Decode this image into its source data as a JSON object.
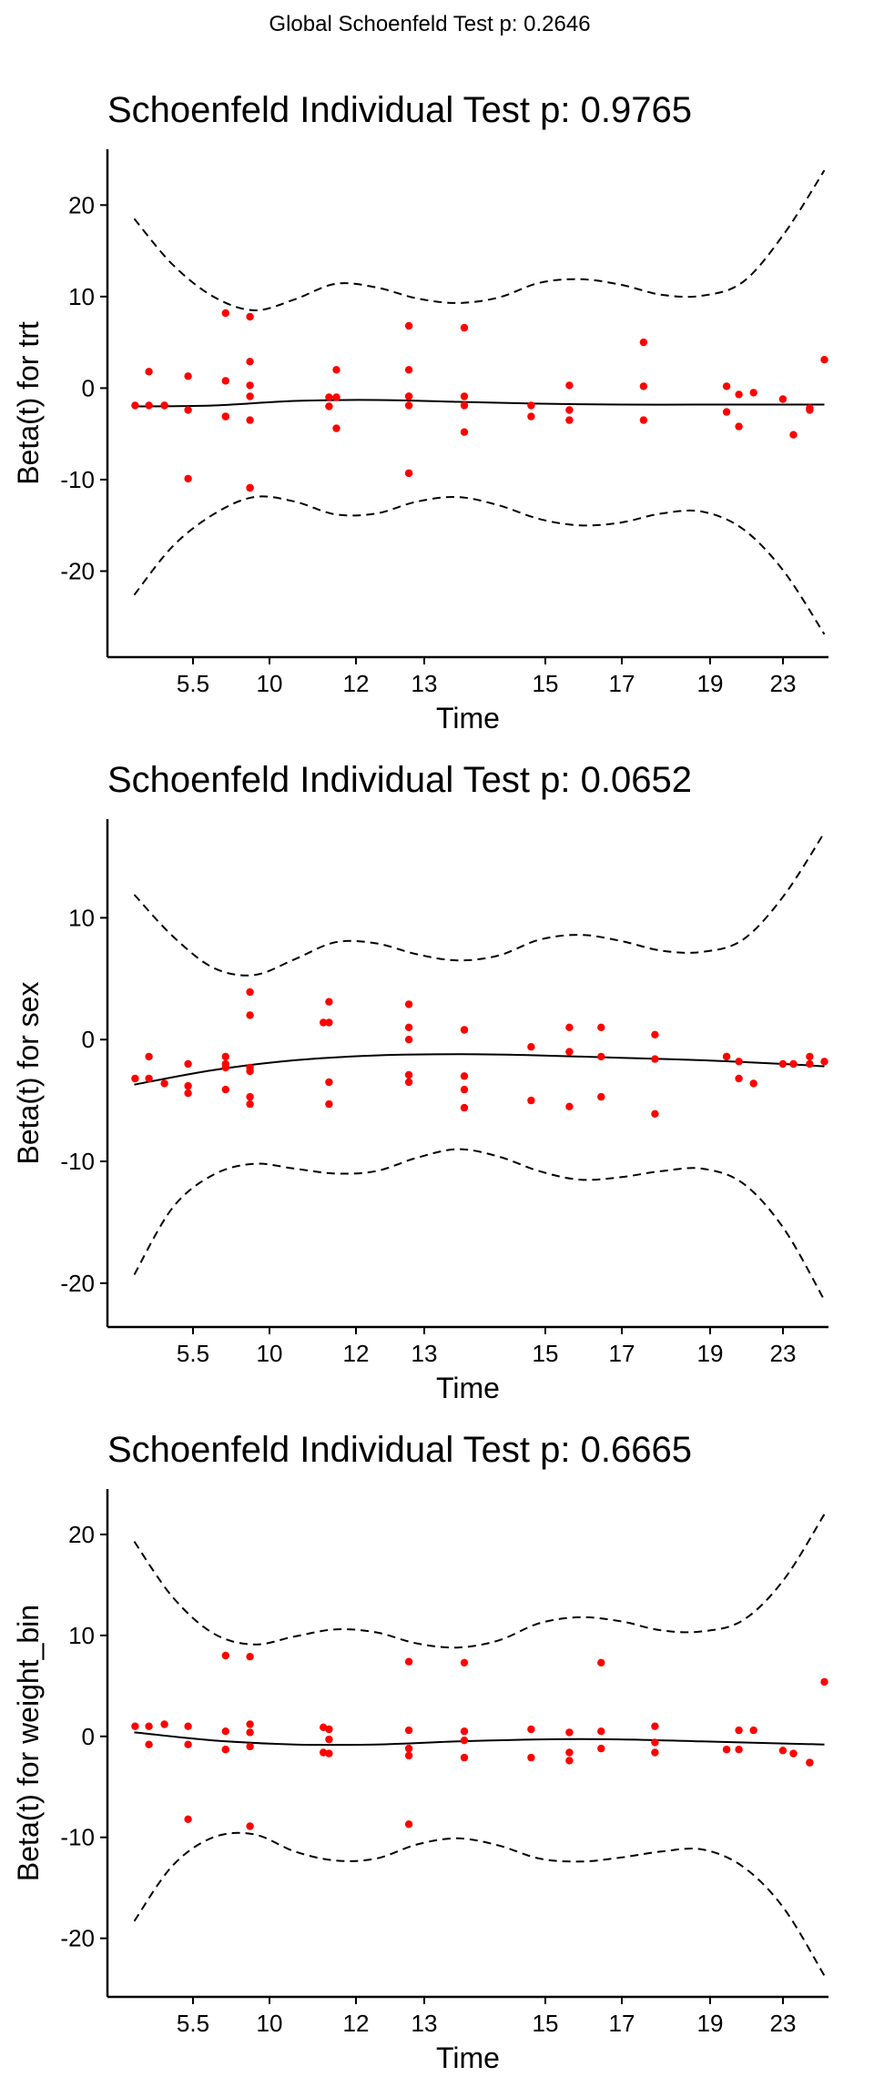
{
  "global_title": "Global Schoenfeld Test p: 0.2646",
  "chart_data": [
    {
      "type": "scatter",
      "title": "Schoenfeld Individual Test p: 0.9765",
      "xlabel": "Time",
      "ylabel": "Beta(t) for trt",
      "x_tick_labels": [
        "5.5",
        "10",
        "12",
        "13",
        "15",
        "17",
        "19",
        "23"
      ],
      "yticks": [
        -20,
        -10,
        0,
        10,
        20
      ],
      "ylim": [
        -29.4,
        26.1
      ],
      "xlim": [
        0.2,
        9.05
      ],
      "grid": false,
      "points": {
        "x": [
          0.54,
          0.71,
          0.71,
          0.9,
          0.9,
          1.19,
          1.19,
          1.19,
          1.65,
          1.65,
          1.65,
          1.65,
          1.95,
          1.95,
          1.95,
          1.95,
          1.95,
          1.95,
          1.95,
          2.92,
          2.92,
          3.01,
          3.01,
          3.01,
          3.9,
          3.9,
          3.9,
          3.9,
          3.9,
          3.9,
          3.9,
          4.58,
          4.58,
          4.58,
          4.58,
          5.4,
          5.4,
          5.87,
          5.87,
          5.87,
          6.78,
          6.78,
          6.78,
          7.8,
          7.8,
          7.95,
          7.95,
          8.13,
          8.49,
          8.62,
          8.82,
          8.82,
          9.0
        ],
        "y": [
          -1.9,
          1.8,
          -1.9,
          -1.9,
          -1.9,
          1.3,
          -2.4,
          -9.9,
          8.2,
          0.8,
          -3.1,
          -3.1,
          7.8,
          2.9,
          0.3,
          -0.9,
          -3.5,
          -10.9,
          -10.9,
          -1.0,
          -2.0,
          2.0,
          -1.0,
          -4.4,
          6.8,
          2.0,
          -0.9,
          -0.9,
          -1.9,
          -9.3,
          -9.3,
          6.6,
          -0.9,
          -1.9,
          -4.8,
          -1.9,
          -3.1,
          0.3,
          -2.4,
          -3.5,
          5.0,
          0.2,
          -3.5,
          0.2,
          -2.6,
          -0.7,
          -4.2,
          -0.5,
          -1.2,
          -5.1,
          -2.2,
          -2.4,
          3.1
        ]
      },
      "fit": {
        "x": [
          0.53,
          1.5,
          2.5,
          3.5,
          4.5,
          5.5,
          6.5,
          7.5,
          8.5,
          9.0
        ],
        "y": [
          -2.0,
          -1.9,
          -1.4,
          -1.3,
          -1.5,
          -1.7,
          -1.8,
          -1.8,
          -1.8,
          -1.8
        ]
      },
      "ci_upper": {
        "x": [
          0.53,
          1.0,
          1.5,
          2.0,
          2.5,
          3.0,
          3.5,
          4.0,
          4.5,
          5.0,
          5.5,
          6.0,
          6.5,
          7.0,
          7.5,
          8.0,
          8.5,
          9.0
        ],
        "y": [
          18.5,
          13.5,
          10.0,
          8.5,
          9.7,
          11.4,
          11.0,
          9.8,
          9.3,
          9.9,
          11.5,
          11.9,
          11.3,
          10.2,
          10.1,
          11.6,
          16.8,
          23.8
        ]
      },
      "ci_lower": {
        "x": [
          0.53,
          1.0,
          1.5,
          2.0,
          2.5,
          3.0,
          3.5,
          4.0,
          4.5,
          5.0,
          5.5,
          6.0,
          6.5,
          7.0,
          7.5,
          8.0,
          8.5,
          9.0
        ],
        "y": [
          -22.6,
          -17.3,
          -13.8,
          -11.9,
          -12.4,
          -13.8,
          -13.7,
          -12.4,
          -11.9,
          -12.8,
          -14.3,
          -15.0,
          -14.7,
          -13.7,
          -13.5,
          -15.4,
          -20.0,
          -26.9
        ]
      }
    },
    {
      "type": "scatter",
      "title": "Schoenfeld Individual Test p: 0.0652",
      "xlabel": "Time",
      "ylabel": "Beta(t) for sex",
      "x_tick_labels": [
        "5.5",
        "10",
        "12",
        "13",
        "15",
        "17",
        "19",
        "23"
      ],
      "yticks": [
        -20,
        -10,
        0,
        10
      ],
      "ylim": [
        -23.6,
        18.1
      ],
      "xlim": [
        0.2,
        9.05
      ],
      "grid": false,
      "points": {
        "x": [
          0.54,
          0.71,
          0.71,
          0.9,
          1.19,
          1.19,
          1.19,
          1.65,
          1.65,
          1.65,
          1.65,
          1.95,
          1.95,
          1.95,
          1.95,
          1.95,
          1.95,
          2.85,
          2.92,
          2.92,
          2.92,
          2.92,
          3.9,
          3.9,
          3.9,
          3.9,
          3.9,
          4.58,
          4.58,
          4.58,
          4.58,
          5.4,
          5.4,
          5.87,
          5.87,
          5.87,
          6.26,
          6.26,
          6.26,
          6.92,
          6.92,
          6.92,
          7.8,
          7.8,
          7.95,
          7.95,
          8.13,
          8.49,
          8.62,
          8.82,
          8.82,
          9.0
        ],
        "y": [
          -3.2,
          -1.4,
          -3.2,
          -3.6,
          -2.0,
          -3.8,
          -4.4,
          -1.4,
          -2.0,
          -2.3,
          -4.1,
          3.9,
          2.0,
          -2.3,
          -2.6,
          -4.7,
          -5.3,
          1.4,
          3.1,
          1.4,
          -3.5,
          -5.3,
          2.9,
          1.0,
          0.0,
          -2.9,
          -3.5,
          0.8,
          -3.0,
          -4.1,
          -5.6,
          -0.6,
          -5.0,
          1.0,
          -1.0,
          -5.5,
          1.0,
          -1.4,
          -4.7,
          0.4,
          -1.6,
          -6.1,
          -1.4,
          -1.4,
          -3.2,
          -1.8,
          -3.6,
          -2.0,
          -2.0,
          -2.0,
          -1.4,
          -1.8
        ]
      },
      "fit": {
        "x": [
          0.53,
          1.5,
          2.5,
          3.5,
          4.5,
          5.5,
          6.5,
          7.5,
          8.5,
          9.0
        ],
        "y": [
          -3.7,
          -2.5,
          -1.7,
          -1.3,
          -1.2,
          -1.3,
          -1.5,
          -1.7,
          -2.0,
          -2.2
        ]
      },
      "ci_upper": {
        "x": [
          0.53,
          1.0,
          1.5,
          2.0,
          2.5,
          3.0,
          3.5,
          4.0,
          4.5,
          5.0,
          5.5,
          6.0,
          6.5,
          7.0,
          7.5,
          8.0,
          8.5,
          9.0
        ],
        "y": [
          11.9,
          8.5,
          5.9,
          5.3,
          6.6,
          8.0,
          7.9,
          7.0,
          6.5,
          6.9,
          8.2,
          8.6,
          8.1,
          7.3,
          7.2,
          8.2,
          11.8,
          17.0
        ]
      },
      "ci_lower": {
        "x": [
          0.53,
          1.0,
          1.5,
          2.0,
          2.5,
          3.0,
          3.5,
          4.0,
          4.5,
          5.0,
          5.5,
          6.0,
          6.5,
          7.0,
          7.5,
          8.0,
          8.5,
          9.0
        ],
        "y": [
          -19.3,
          -13.8,
          -11.1,
          -10.2,
          -10.6,
          -11.0,
          -10.8,
          -9.7,
          -9.0,
          -9.6,
          -10.8,
          -11.5,
          -11.3,
          -10.8,
          -10.6,
          -11.8,
          -15.5,
          -21.4
        ]
      }
    },
    {
      "type": "scatter",
      "title": "Schoenfeld Individual Test p: 0.6665",
      "xlabel": "Time",
      "ylabel": "Beta(t) for weight_bin",
      "x_tick_labels": [
        "5.5",
        "10",
        "12",
        "13",
        "15",
        "17",
        "19",
        "23"
      ],
      "yticks": [
        -20,
        -10,
        0,
        10,
        20
      ],
      "ylim": [
        -25.8,
        24.5
      ],
      "xlim": [
        0.2,
        9.05
      ],
      "grid": false,
      "points": {
        "x": [
          0.54,
          0.71,
          0.71,
          0.9,
          1.19,
          1.19,
          1.19,
          1.65,
          1.65,
          1.65,
          1.65,
          1.95,
          1.95,
          1.95,
          1.95,
          1.95,
          2.85,
          2.85,
          2.92,
          2.92,
          2.92,
          3.9,
          3.9,
          3.9,
          3.9,
          3.9,
          4.58,
          4.58,
          4.58,
          4.58,
          5.4,
          5.4,
          5.87,
          5.87,
          5.87,
          6.26,
          6.26,
          6.26,
          6.92,
          6.92,
          6.92,
          7.8,
          7.8,
          7.95,
          7.95,
          8.13,
          8.49,
          8.62,
          8.82,
          8.82,
          9.0
        ],
        "y": [
          1.0,
          1.0,
          -0.8,
          1.2,
          1.0,
          -0.8,
          -8.2,
          8.0,
          0.5,
          -1.3,
          -1.3,
          7.9,
          1.2,
          0.4,
          -1.0,
          -8.9,
          0.9,
          -1.6,
          0.7,
          -0.3,
          -1.7,
          7.4,
          0.6,
          -1.2,
          -1.9,
          -8.7,
          7.3,
          0.5,
          -0.4,
          -2.1,
          0.7,
          -2.1,
          0.4,
          -1.6,
          -2.4,
          7.3,
          0.5,
          -1.2,
          1.0,
          -0.6,
          -1.6,
          -1.3,
          -1.3,
          0.6,
          -1.3,
          0.6,
          -1.4,
          -1.7,
          -2.6,
          -2.6,
          5.4
        ]
      },
      "fit": {
        "x": [
          0.53,
          1.5,
          2.5,
          3.5,
          4.5,
          5.5,
          6.5,
          7.5,
          8.5,
          9.0
        ],
        "y": [
          0.4,
          -0.4,
          -0.8,
          -0.8,
          -0.5,
          -0.3,
          -0.3,
          -0.5,
          -0.7,
          -0.8
        ]
      },
      "ci_upper": {
        "x": [
          0.53,
          1.0,
          1.5,
          2.0,
          2.5,
          3.0,
          3.5,
          4.0,
          4.5,
          5.0,
          5.5,
          6.0,
          6.5,
          7.0,
          7.5,
          8.0,
          8.5,
          9.0
        ],
        "y": [
          19.3,
          13.8,
          10.2,
          9.1,
          9.9,
          10.6,
          10.3,
          9.2,
          8.8,
          9.5,
          11.2,
          11.8,
          11.4,
          10.5,
          10.4,
          11.5,
          15.5,
          22.0
        ]
      },
      "ci_lower": {
        "x": [
          0.53,
          1.0,
          1.5,
          2.0,
          2.5,
          3.0,
          3.5,
          4.0,
          4.5,
          5.0,
          5.5,
          6.0,
          6.5,
          7.0,
          7.5,
          8.0,
          8.5,
          9.0
        ],
        "y": [
          -18.3,
          -12.8,
          -10.0,
          -9.7,
          -11.4,
          -12.3,
          -12.1,
          -10.7,
          -10.1,
          -10.8,
          -12.1,
          -12.4,
          -12.0,
          -11.4,
          -11.2,
          -12.9,
          -17.0,
          -23.7
        ]
      }
    }
  ]
}
